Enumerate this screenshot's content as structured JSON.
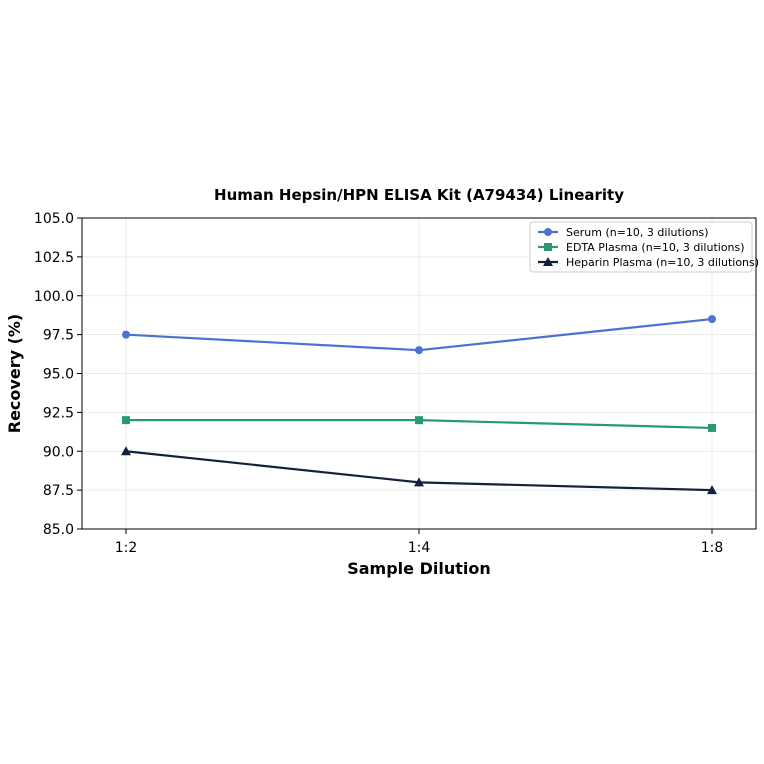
{
  "chart_data": {
    "type": "line",
    "title": "Human Hepsin/HPN ELISA Kit (A79434) Linearity",
    "xlabel": "Sample Dilution",
    "ylabel": "Recovery (%)",
    "categories": [
      "1:2",
      "1:4",
      "1:8"
    ],
    "ylim": [
      85.0,
      105.0
    ],
    "yticks": [
      "85.0",
      "87.5",
      "90.0",
      "92.5",
      "95.0",
      "97.5",
      "100.0",
      "102.5",
      "105.0"
    ],
    "ytick_values": [
      85.0,
      87.5,
      90.0,
      92.5,
      95.0,
      97.5,
      100.0,
      102.5,
      105.0
    ],
    "grid": true,
    "legend_position": "top-right",
    "series": [
      {
        "name": "Serum (n=10, 3 dilutions)",
        "values": [
          97.5,
          96.5,
          98.5
        ],
        "color": "#4c72d1",
        "marker": "circle"
      },
      {
        "name": "EDTA Plasma (n=10, 3 dilutions)",
        "values": [
          92.0,
          92.0,
          91.5
        ],
        "color": "#2a9a6e",
        "marker": "square"
      },
      {
        "name": "Heparin Plasma (n=10, 3 dilutions)",
        "values": [
          90.0,
          88.0,
          87.5
        ],
        "color": "#14213d",
        "marker": "triangle"
      }
    ]
  }
}
